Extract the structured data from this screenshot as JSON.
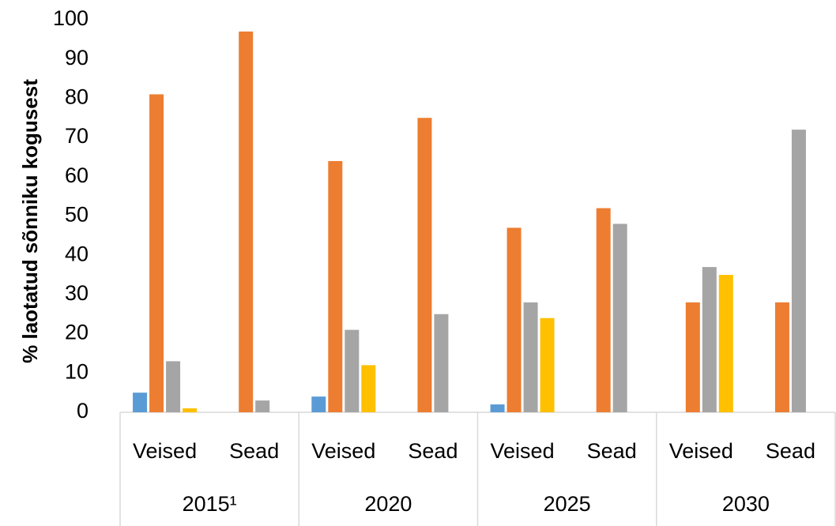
{
  "chart_data": {
    "type": "bar",
    "y_label": "% laotatud sõnniku kogusest",
    "groups": [
      "2015¹",
      "2020",
      "2025",
      "2030"
    ],
    "categories": [
      "Veised",
      "Sead",
      "Veised",
      "Sead",
      "Veised",
      "Sead",
      "Veised",
      "Sead"
    ],
    "series": [
      {
        "color": "#5b9bd5",
        "values": [
          5,
          0,
          4,
          0,
          2,
          0,
          0,
          0
        ]
      },
      {
        "color": "#ed7d31",
        "values": [
          81,
          97,
          64,
          75,
          47,
          52,
          28,
          28
        ]
      },
      {
        "color": "#a5a5a5",
        "values": [
          13,
          3,
          21,
          25,
          28,
          48,
          37,
          72
        ]
      },
      {
        "color": "#ffc000",
        "values": [
          1,
          0,
          12,
          0,
          24,
          0,
          35,
          0
        ]
      }
    ],
    "ylim": [
      0,
      100
    ],
    "yticks": [
      0,
      10,
      20,
      30,
      40,
      50,
      60,
      70,
      80,
      90,
      100
    ],
    "grid": false
  }
}
